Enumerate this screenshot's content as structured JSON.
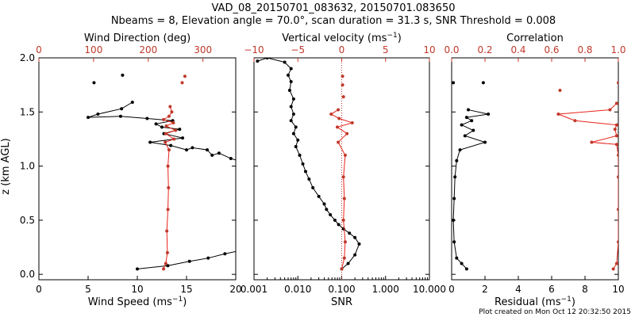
{
  "header": {
    "title_line1": "VAD_08_20150701_083632, 20150701.083650",
    "title_line2": "Nbeams = 8, Elevation angle = 70.0°, scan duration = 31.3 s, SNR Threshold = 0.008"
  },
  "footer": {
    "created": "Plot created on Mon Oct 12 20:32:50 2015"
  },
  "colors": {
    "black": "#000000",
    "red": "#c0392b",
    "red_line": "#e8231a",
    "frame": "#000000"
  },
  "shared_y": {
    "label": "z (km AGL)",
    "tick_labels": [
      "0.0",
      "0.5",
      "1.0",
      "1.5",
      "2.0"
    ],
    "ticks": [
      0,
      0.5,
      1.0,
      1.5,
      2.0
    ],
    "range": [
      -0.05,
      2.0
    ]
  },
  "chart_data": [
    {
      "type": "line",
      "panel": "wind",
      "bottom_axis": {
        "label_prefix": "Wind Speed (ms",
        "label_exp": "−1",
        "label_suffix": ")",
        "range": [
          0,
          20
        ],
        "scale": "linear",
        "ticks": [
          0,
          5,
          10,
          15,
          20
        ],
        "tick_labels": [
          "0",
          "5",
          "10",
          "15",
          "20"
        ]
      },
      "top_axis": {
        "label": "Wind Direction (deg)",
        "range": [
          0,
          360
        ],
        "scale": "linear",
        "ticks": [
          0,
          100,
          200,
          300
        ],
        "tick_labels": [
          "0",
          "100",
          "200",
          "300"
        ]
      },
      "series": [
        {
          "axis": "bottom",
          "color": "black",
          "connected_points": [
            [
              10.0,
              0.05
            ],
            [
              13.1,
              0.08
            ],
            [
              15.3,
              0.12
            ],
            [
              17.2,
              0.15
            ],
            [
              18.9,
              0.19
            ],
            [
              21.0,
              0.23
            ],
            [
              20.6,
              1.04
            ],
            [
              19.5,
              1.07
            ],
            [
              18.3,
              1.12
            ],
            [
              17.6,
              1.1
            ],
            [
              17.1,
              1.15
            ],
            [
              15.6,
              1.17
            ],
            [
              15.0,
              1.15
            ],
            [
              13.4,
              1.19
            ],
            [
              11.3,
              1.22
            ],
            [
              14.6,
              1.26
            ],
            [
              12.7,
              1.3
            ],
            [
              14.3,
              1.34
            ],
            [
              12.5,
              1.36
            ],
            [
              11.9,
              1.39
            ],
            [
              13.6,
              1.42
            ],
            [
              11.0,
              1.44
            ],
            [
              8.3,
              1.46
            ],
            [
              5.0,
              1.45
            ],
            [
              6.0,
              1.48
            ],
            [
              8.4,
              1.53
            ],
            [
              9.5,
              1.59
            ]
          ],
          "detached_points": [
            [
              5.6,
              1.77
            ],
            [
              8.5,
              1.84
            ]
          ]
        },
        {
          "axis": "top",
          "color": "red",
          "connected_points": [
            [
              228,
              0.05
            ],
            [
              232,
              0.1
            ],
            [
              235,
              0.2
            ],
            [
              234,
              0.4
            ],
            [
              236,
              0.6
            ],
            [
              237,
              0.8
            ],
            [
              236,
              1.0
            ],
            [
              238,
              1.15
            ],
            [
              231,
              1.22
            ],
            [
              247,
              1.25
            ],
            [
              232,
              1.3
            ],
            [
              250,
              1.33
            ],
            [
              233,
              1.37
            ],
            [
              246,
              1.4
            ],
            [
              228,
              1.43
            ],
            [
              238,
              1.46
            ],
            [
              243,
              1.5
            ],
            [
              240,
              1.55
            ]
          ],
          "detached_points": [
            [
              262,
              1.77
            ],
            [
              267,
              1.83
            ]
          ]
        }
      ]
    },
    {
      "type": "line",
      "panel": "snr",
      "bottom_axis": {
        "label": "SNR",
        "range": [
          0.001,
          10
        ],
        "scale": "log",
        "ticks": [
          0.001,
          0.01,
          0.1,
          1,
          10
        ],
        "tick_labels": [
          "0.001",
          "0.010",
          "0.100",
          "1.000",
          "10.000"
        ]
      },
      "top_axis": {
        "label_prefix": "Vertical velocity (ms",
        "label_exp": "−1",
        "label_suffix": ")",
        "range": [
          -10,
          10
        ],
        "scale": "linear",
        "ticks": [
          -10,
          -5,
          0,
          5,
          10
        ],
        "tick_labels": [
          "−10",
          "−5",
          "0",
          "5",
          "10"
        ]
      },
      "zero_line": {
        "value": 0,
        "style": "dotted",
        "color": "red"
      },
      "series": [
        {
          "axis": "bottom",
          "color": "black",
          "connected_points": [
            [
              0.1,
              0.05
            ],
            [
              0.14,
              0.1
            ],
            [
              0.2,
              0.18
            ],
            [
              0.25,
              0.28
            ],
            [
              0.2,
              0.34
            ],
            [
              0.15,
              0.38
            ],
            [
              0.11,
              0.42
            ],
            [
              0.085,
              0.46
            ],
            [
              0.07,
              0.5
            ],
            [
              0.055,
              0.55
            ],
            [
              0.045,
              0.6
            ],
            [
              0.04,
              0.65
            ],
            [
              0.03,
              0.72
            ],
            [
              0.022,
              0.8
            ],
            [
              0.018,
              0.88
            ],
            [
              0.015,
              0.95
            ],
            [
              0.013,
              1.02
            ],
            [
              0.011,
              1.1
            ],
            [
              0.009,
              1.18
            ],
            [
              0.01,
              1.24
            ],
            [
              0.008,
              1.3
            ],
            [
              0.009,
              1.36
            ],
            [
              0.007,
              1.42
            ],
            [
              0.008,
              1.48
            ],
            [
              0.007,
              1.55
            ],
            [
              0.008,
              1.62
            ],
            [
              0.0065,
              1.7
            ],
            [
              0.007,
              1.78
            ],
            [
              0.006,
              1.84
            ],
            [
              0.007,
              1.9
            ],
            [
              0.005,
              1.96
            ],
            [
              0.002,
              2.0
            ],
            [
              0.0012,
              1.97
            ]
          ]
        },
        {
          "axis": "top",
          "color": "red",
          "connected_points": [
            [
              0.0,
              0.05
            ],
            [
              0.3,
              0.15
            ],
            [
              0.4,
              0.3
            ],
            [
              0.2,
              0.5
            ],
            [
              0.3,
              0.7
            ],
            [
              0.2,
              0.9
            ],
            [
              0.4,
              1.1
            ],
            [
              -0.4,
              1.22
            ],
            [
              0.6,
              1.3
            ],
            [
              -0.5,
              1.36
            ],
            [
              1.2,
              1.4
            ],
            [
              -0.3,
              1.44
            ],
            [
              -1.2,
              1.48
            ],
            [
              -0.4,
              1.52
            ]
          ],
          "detached_points": [
            [
              0.2,
              1.64
            ],
            [
              0.1,
              1.75
            ],
            [
              0.1,
              1.83
            ]
          ]
        }
      ]
    },
    {
      "type": "line",
      "panel": "residual",
      "bottom_axis": {
        "label_prefix": "Residual (ms",
        "label_exp": "−1",
        "label_suffix": ")",
        "range": [
          0,
          10
        ],
        "scale": "linear",
        "ticks": [
          0,
          2,
          4,
          6,
          8,
          10
        ],
        "tick_labels": [
          "0",
          "2",
          "4",
          "6",
          "8",
          "10"
        ]
      },
      "top_axis": {
        "label": "Correlation",
        "range": [
          0,
          1
        ],
        "scale": "linear",
        "ticks": [
          0,
          0.2,
          0.4,
          0.6,
          0.8,
          1.0
        ],
        "tick_labels": [
          "0.0",
          "0.2",
          "0.4",
          "0.6",
          "0.8",
          "1.0"
        ]
      },
      "series": [
        {
          "axis": "bottom",
          "color": "black",
          "connected_points": [
            [
              0.9,
              0.05
            ],
            [
              0.6,
              0.1
            ],
            [
              0.3,
              0.15
            ],
            [
              0.15,
              0.3
            ],
            [
              0.1,
              0.5
            ],
            [
              0.15,
              0.7
            ],
            [
              0.2,
              0.9
            ],
            [
              0.3,
              1.05
            ],
            [
              0.5,
              1.15
            ],
            [
              2.0,
              1.22
            ],
            [
              0.8,
              1.28
            ],
            [
              1.3,
              1.33
            ],
            [
              0.6,
              1.38
            ],
            [
              1.2,
              1.42
            ],
            [
              0.9,
              1.45
            ],
            [
              2.2,
              1.48
            ],
            [
              1.0,
              1.52
            ]
          ],
          "detached_points": [
            [
              0.1,
              1.77
            ],
            [
              1.9,
              1.77
            ]
          ]
        },
        {
          "axis": "top",
          "color": "red",
          "connected_points": [
            [
              0.97,
              0.05
            ],
            [
              0.99,
              0.1
            ],
            [
              1.0,
              0.3
            ],
            [
              1.0,
              0.6
            ],
            [
              1.0,
              0.9
            ],
            [
              1.0,
              1.1
            ],
            [
              0.99,
              1.2
            ],
            [
              0.84,
              1.22
            ],
            [
              0.99,
              1.28
            ],
            [
              0.98,
              1.34
            ],
            [
              0.99,
              1.38
            ],
            [
              0.74,
              1.42
            ],
            [
              0.64,
              1.48
            ],
            [
              0.95,
              1.52
            ],
            [
              0.99,
              1.58
            ]
          ],
          "detached_points": [
            [
              0.65,
              1.7
            ],
            [
              1.0,
              1.77
            ]
          ]
        }
      ]
    }
  ]
}
